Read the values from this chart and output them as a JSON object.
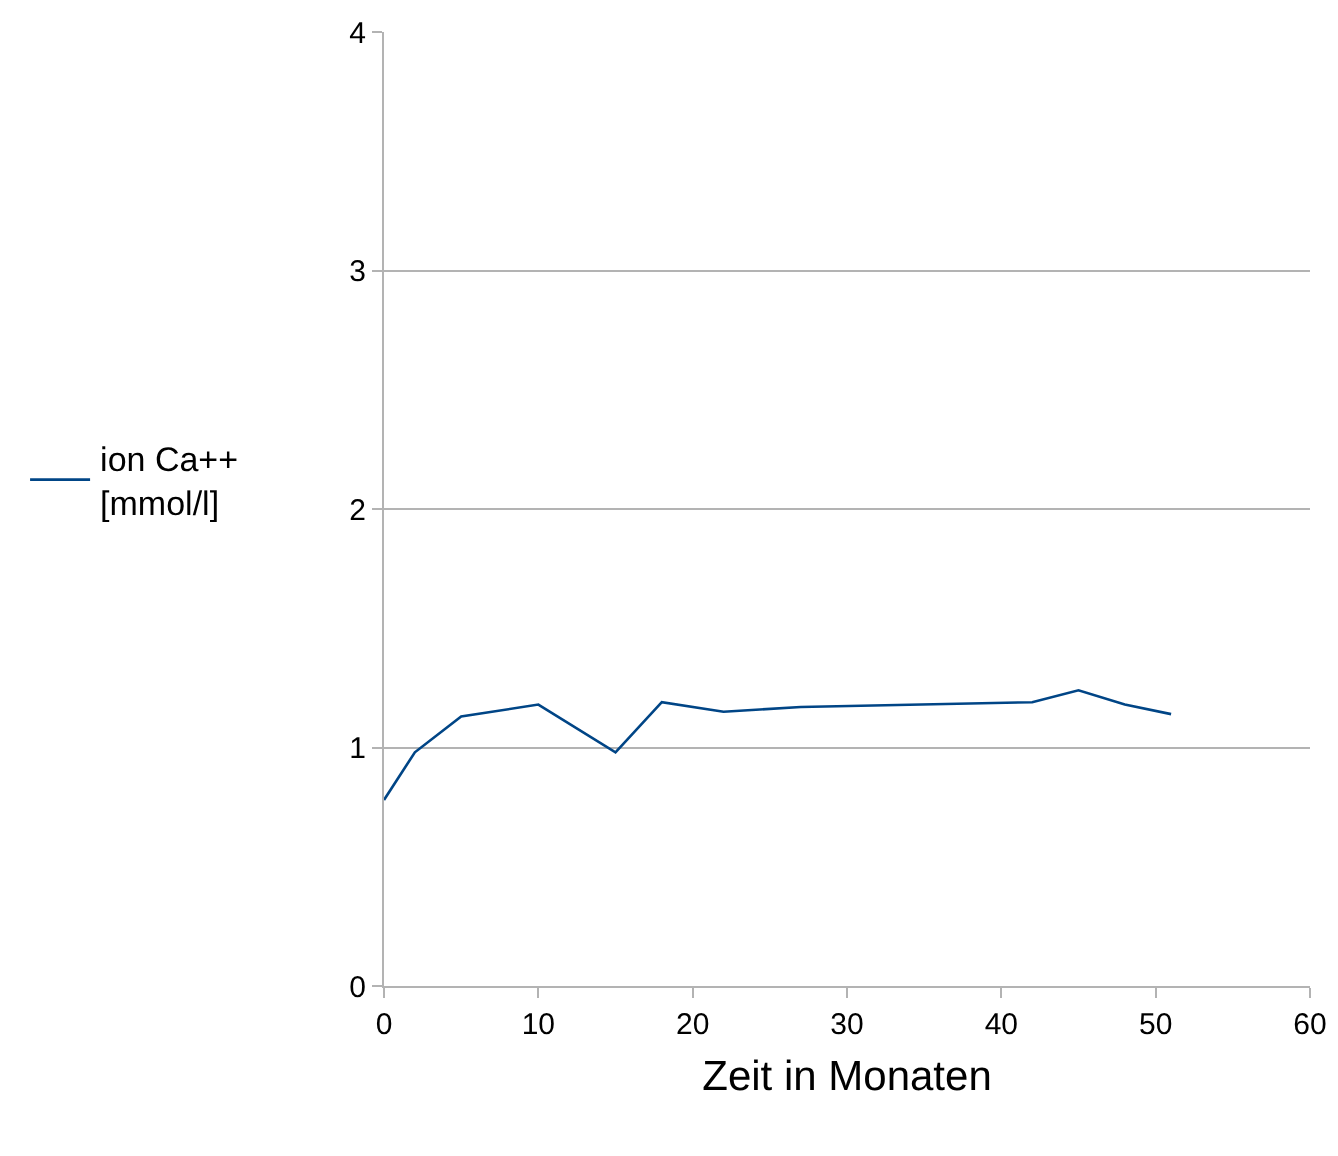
{
  "chart_data": {
    "type": "line",
    "xlabel": "Zeit in Monaten",
    "x": [
      0,
      2,
      5,
      10,
      15,
      18,
      22,
      27,
      42,
      45,
      48,
      51
    ],
    "series": [
      {
        "name": "ion Ca++ [mmol/l]",
        "color": "#004586",
        "values": [
          0.78,
          0.98,
          1.13,
          1.18,
          0.98,
          1.19,
          1.15,
          1.17,
          1.19,
          1.24,
          1.18,
          1.14
        ]
      }
    ],
    "xlim": [
      0,
      60
    ],
    "xticks": [
      0,
      10,
      20,
      30,
      40,
      50,
      60
    ],
    "ylim": [
      0,
      4
    ],
    "yticks": [
      0,
      1,
      2,
      3,
      4
    ],
    "grid": "y",
    "legend": "left",
    "marker": "none",
    "line_style": "solid"
  }
}
